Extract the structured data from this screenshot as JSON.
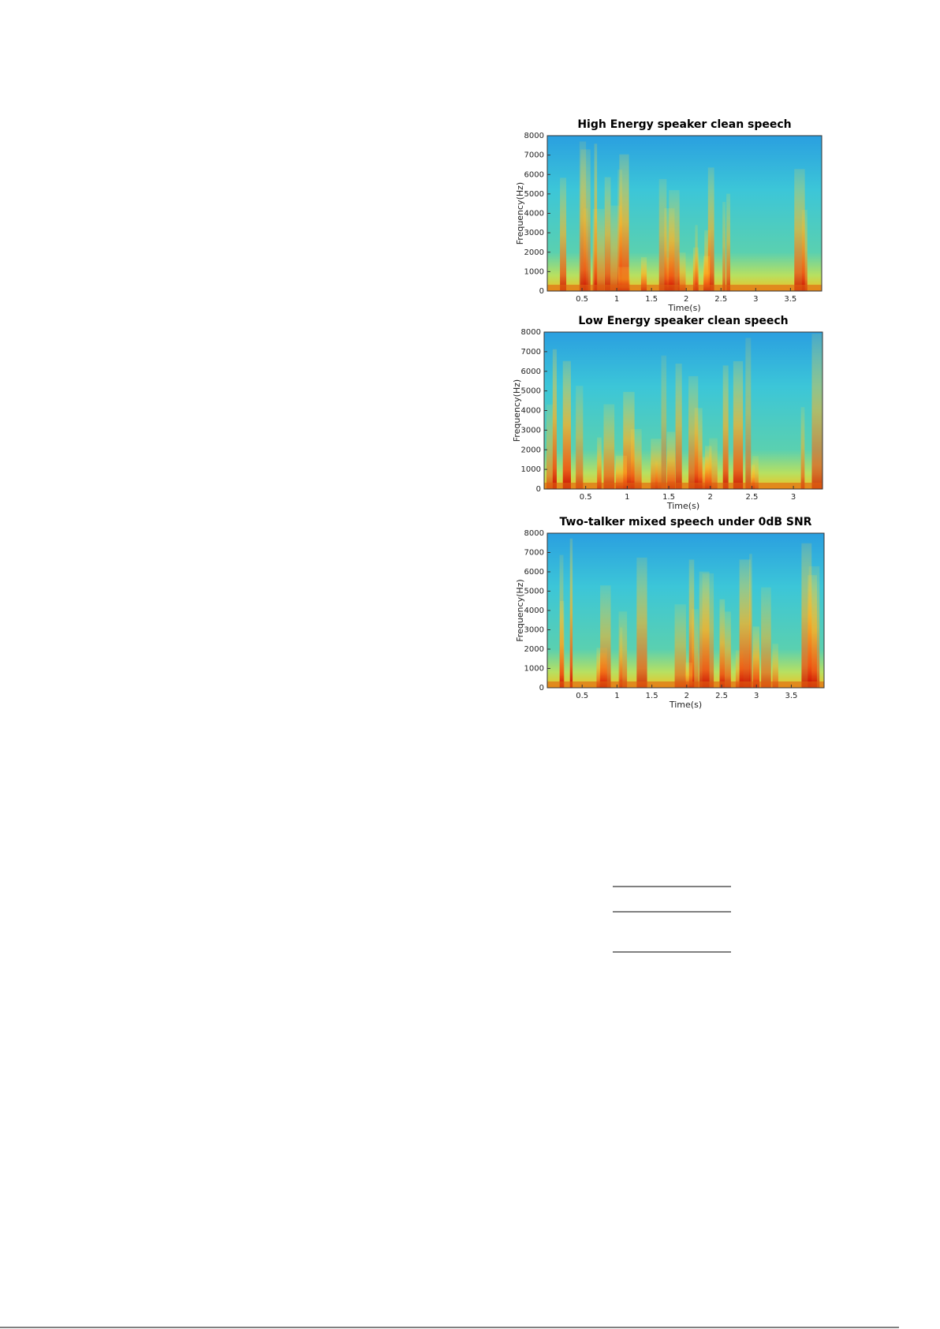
{
  "chart_data": [
    {
      "type": "spectrogram",
      "title": "High Energy speaker clean speech",
      "x_label": "Time(s)",
      "y_label": "Frequency(Hz)",
      "colormap": "jet",
      "xlim": [
        0,
        3.95
      ],
      "ylim": [
        0,
        8000
      ],
      "xticks": [
        0.5,
        1,
        1.5,
        2,
        2.5,
        3,
        3.5
      ],
      "yticks": [
        0,
        1000,
        2000,
        3000,
        4000,
        5000,
        6000,
        7000,
        8000
      ]
    },
    {
      "type": "spectrogram",
      "title": "Low Energy speaker clean speech",
      "x_label": "Time(s)",
      "y_label": "Frequency(Hz)",
      "colormap": "jet",
      "xlim": [
        0,
        3.35
      ],
      "ylim": [
        0,
        8000
      ],
      "xticks": [
        0.5,
        1,
        1.5,
        2,
        2.5,
        3
      ],
      "yticks": [
        0,
        1000,
        2000,
        3000,
        4000,
        5000,
        6000,
        7000,
        8000
      ]
    },
    {
      "type": "spectrogram",
      "title": "Two-talker mixed speech under 0dB SNR",
      "x_label": "Time(s)",
      "y_label": "Frequency(Hz)",
      "colormap": "jet",
      "xlim": [
        0,
        3.97
      ],
      "ylim": [
        0,
        8000
      ],
      "xticks": [
        0.5,
        1,
        1.5,
        2,
        2.5,
        3,
        3.5
      ],
      "yticks": [
        0,
        1000,
        2000,
        3000,
        4000,
        5000,
        6000,
        7000,
        8000
      ]
    }
  ]
}
